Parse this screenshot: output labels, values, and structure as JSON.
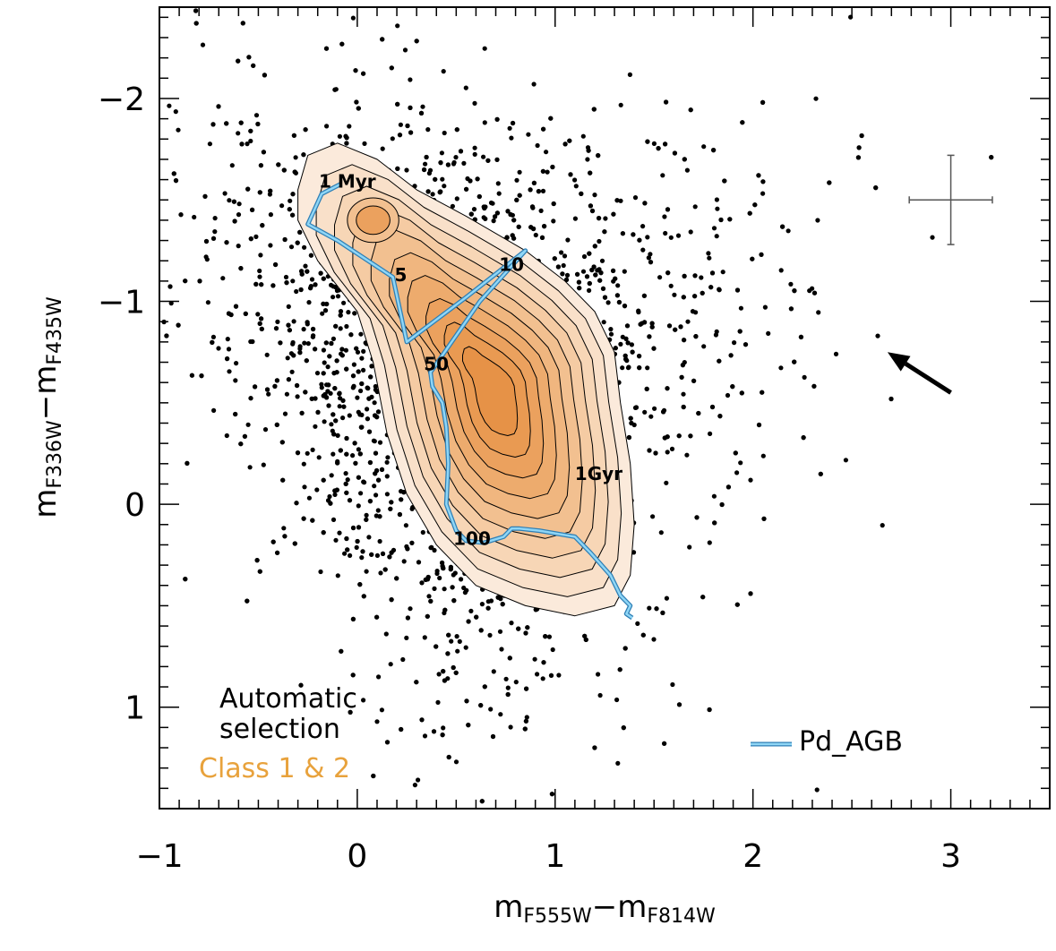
{
  "chart_data": {
    "type": "scatter",
    "title": "",
    "xlabel": {
      "main": "m",
      "sub1": "F555W",
      "minus": "−",
      "main2": "m",
      "sub2": "F814W"
    },
    "ylabel": {
      "main": "m",
      "sub1": "F336W",
      "minus": "−",
      "main2": "m",
      "sub2": "F435W"
    },
    "xlim": [
      -1,
      3.5
    ],
    "ylim": [
      -2.45,
      1.5
    ],
    "y_inverted": true,
    "x_ticks": [
      {
        "value": -1,
        "label": "−1"
      },
      {
        "value": 0,
        "label": "0"
      },
      {
        "value": 1,
        "label": "1"
      },
      {
        "value": 2,
        "label": "2"
      },
      {
        "value": 3,
        "label": "3"
      }
    ],
    "y_ticks": [
      {
        "value": -2,
        "label": "−2"
      },
      {
        "value": -1,
        "label": "−1"
      },
      {
        "value": 0,
        "label": "0"
      },
      {
        "value": 1,
        "label": "1"
      }
    ],
    "scatter": {
      "description": "star clusters (black points)",
      "color": "#000000",
      "dense_region_center": [
        0.5,
        -0.7
      ],
      "n_points": 3200
    },
    "density_contours": {
      "peak": [
        0.63,
        -0.5
      ],
      "levels": 10,
      "outline": [
        [
          -0.3,
          -1.55
        ],
        [
          -0.25,
          -1.72
        ],
        [
          -0.1,
          -1.78
        ],
        [
          0.1,
          -1.7
        ],
        [
          0.3,
          -1.55
        ],
        [
          0.55,
          -1.42
        ],
        [
          0.85,
          -1.25
        ],
        [
          1.05,
          -1.1
        ],
        [
          1.2,
          -0.95
        ],
        [
          1.3,
          -0.75
        ],
        [
          1.33,
          -0.5
        ],
        [
          1.38,
          -0.2
        ],
        [
          1.4,
          0.1
        ],
        [
          1.38,
          0.35
        ],
        [
          1.3,
          0.5
        ],
        [
          1.1,
          0.55
        ],
        [
          0.85,
          0.5
        ],
        [
          0.6,
          0.4
        ],
        [
          0.4,
          0.2
        ],
        [
          0.25,
          -0.05
        ],
        [
          0.15,
          -0.35
        ],
        [
          0.08,
          -0.7
        ],
        [
          0.0,
          -0.95
        ],
        [
          -0.2,
          -1.2
        ],
        [
          -0.3,
          -1.4
        ]
      ],
      "colors": [
        "#fbeadb",
        "#f9e0c9",
        "#f7d6b6",
        "#f5cba3",
        "#f2c090",
        "#f0b67f",
        "#edab6d",
        "#eba15e",
        "#e99a52",
        "#e69247"
      ]
    },
    "track": {
      "name": "Pd_AGB",
      "color": "#6ec3f0",
      "points": [
        [
          -0.08,
          -1.58
        ],
        [
          -0.18,
          -1.53
        ],
        [
          -0.25,
          -1.38
        ],
        [
          -0.1,
          -1.3
        ],
        [
          0.18,
          -1.12
        ],
        [
          0.25,
          -0.8
        ],
        [
          0.55,
          -1.02
        ],
        [
          0.85,
          -1.25
        ],
        [
          0.62,
          -1.0
        ],
        [
          0.42,
          -0.72
        ],
        [
          0.37,
          -0.65
        ],
        [
          0.38,
          -0.58
        ],
        [
          0.43,
          -0.5
        ],
        [
          0.45,
          -0.38
        ],
        [
          0.46,
          -0.2
        ],
        [
          0.45,
          0.0
        ],
        [
          0.5,
          0.13
        ],
        [
          0.55,
          0.18
        ],
        [
          0.64,
          0.19
        ],
        [
          0.74,
          0.16
        ],
        [
          0.78,
          0.12
        ],
        [
          0.82,
          0.12
        ],
        [
          0.92,
          0.13
        ],
        [
          1.1,
          0.16
        ],
        [
          1.18,
          0.24
        ],
        [
          1.28,
          0.35
        ],
        [
          1.33,
          0.45
        ],
        [
          1.38,
          0.5
        ],
        [
          1.36,
          0.54
        ],
        [
          1.39,
          0.56
        ]
      ]
    },
    "age_labels": [
      {
        "text": "1 Myr",
        "x": -0.05,
        "y": -1.56
      },
      {
        "text": "5",
        "x": 0.22,
        "y": -1.1
      },
      {
        "text": "10",
        "x": 0.78,
        "y": -1.15
      },
      {
        "text": "50",
        "x": 0.4,
        "y": -0.66
      },
      {
        "text": "100",
        "x": 0.58,
        "y": 0.2
      },
      {
        "text": "1Gyr",
        "x": 1.22,
        "y": -0.12
      }
    ],
    "error_bar": {
      "x": 3.0,
      "y": -1.5,
      "xerr": 0.21,
      "yerr": 0.22,
      "color": "#555555"
    },
    "reddening_arrow": {
      "from": [
        3.0,
        -0.55
      ],
      "to": [
        2.68,
        -0.75
      ]
    },
    "legend": {
      "selection_line1": "Automatic",
      "selection_line2": "selection",
      "class_label": "Class 1 & 2",
      "class_color": "#e8a23c",
      "track_label": "Pd_AGB"
    }
  }
}
